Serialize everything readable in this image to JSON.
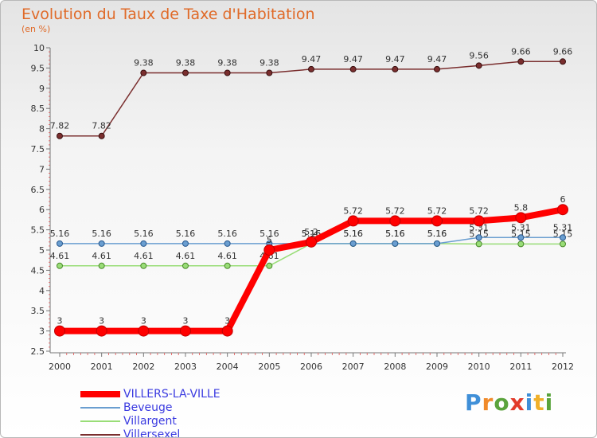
{
  "title": "Evolution du Taux de Taxe d'Habitation",
  "subtitle": "(en %)",
  "logo": {
    "letters": [
      "P",
      "r",
      "o",
      "x",
      "i",
      "t",
      "i"
    ],
    "colors": [
      "#3f8fd8",
      "#f08a2a",
      "#5aa33c",
      "#e23a2a",
      "#3f8fd8",
      "#f0b02a",
      "#5aa33c"
    ]
  },
  "chart_data": {
    "type": "line",
    "title": "Evolution du Taux de Taxe d'Habitation",
    "ylabel": "(en %)",
    "xlabel": "",
    "ylim": [
      2.5,
      10
    ],
    "yticks": [
      "2.5",
      "3",
      "3.5",
      "4",
      "4.5",
      "5",
      "5.5",
      "6",
      "6.5",
      "7",
      "7.5",
      "8",
      "8.5",
      "9",
      "9.5",
      "10"
    ],
    "categories": [
      "2000",
      "2001",
      "2002",
      "2003",
      "2004",
      "2005",
      "2006",
      "2007",
      "2008",
      "2009",
      "2010",
      "2011",
      "2012"
    ],
    "series": [
      {
        "name": "Villersexel",
        "color": "#7a2e2e",
        "values": [
          7.82,
          7.82,
          9.38,
          9.38,
          9.38,
          9.38,
          9.47,
          9.47,
          9.47,
          9.47,
          9.56,
          9.66,
          9.66
        ],
        "labels": [
          "7.82",
          "7.82",
          "9.38",
          "9.38",
          "9.38",
          "9.38",
          "9.47",
          "9.47",
          "9.47",
          "9.47",
          "9.56",
          "9.66",
          "9.66"
        ]
      },
      {
        "name": "Villargent",
        "color": "#99dd77",
        "values": [
          4.61,
          4.61,
          4.61,
          4.61,
          4.61,
          4.61,
          5.16,
          5.16,
          5.16,
          5.16,
          5.15,
          5.15,
          5.15
        ],
        "labels": [
          "4.61",
          "4.61",
          "4.61",
          "4.61",
          "4.61",
          "4.61",
          "5.16",
          "5.16",
          "5.16",
          "5.16",
          "5.15",
          "5.15",
          "5.15"
        ]
      },
      {
        "name": "Beveuge",
        "color": "#6a9ed0",
        "values": [
          5.16,
          5.16,
          5.16,
          5.16,
          5.16,
          5.16,
          5.16,
          5.16,
          5.16,
          5.16,
          5.31,
          5.31,
          5.31
        ],
        "labels": [
          "5.16",
          "5.16",
          "5.16",
          "5.16",
          "5.16",
          "5.16",
          "5.16",
          "5.16",
          "5.16",
          "5.16",
          "5.31",
          "5.31",
          "5.31"
        ]
      },
      {
        "name": "VILLERS-LA-VILLE",
        "color": "#ff0000",
        "values": [
          3,
          3,
          3,
          3,
          3,
          5,
          5.2,
          5.72,
          5.72,
          5.72,
          5.72,
          5.8,
          6
        ],
        "labels": [
          "3",
          "3",
          "3",
          "3",
          "3",
          "5",
          "5.2",
          "5.72",
          "5.72",
          "5.72",
          "5.72",
          "5.8",
          "6"
        ]
      }
    ],
    "legend": [
      "VILLERS-LA-VILLE",
      "Beveuge",
      "Villargent",
      "Villersexel"
    ],
    "legend_position": "bottom-left",
    "grid": false
  }
}
